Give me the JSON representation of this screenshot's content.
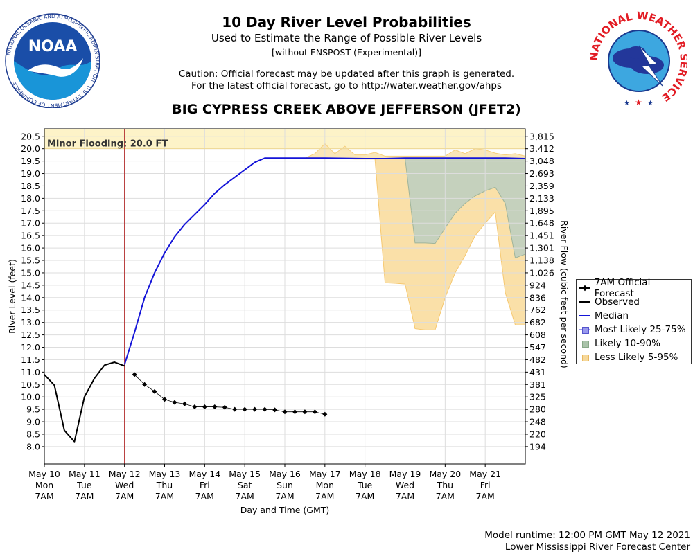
{
  "header": {
    "title": "10 Day River Level Probabilities",
    "subtitle": "Used to Estimate the Range of Possible River Levels",
    "subtitle2": "[without ENSPOST (Experimental)]",
    "caution1": "Caution: Official forecast may be updated after this graph is generated.",
    "caution2": "For the latest official forecast, go to http://water.weather.gov/ahps",
    "station": "BIG CYPRESS CREEK ABOVE JEFFERSON (JFET2)"
  },
  "logos": {
    "noaa_text": "NOAA",
    "noaa_ring": "NATIONAL OCEANIC AND ATMOSPHERIC ADMINISTRATION · U.S. DEPARTMENT OF COMMERCE",
    "nws_ring": "NATIONAL WEATHER SERVICE"
  },
  "footer": {
    "runtime": "Model runtime: 12:00 PM GMT May 12 2021",
    "center": "Lower Mississippi River Forecast Center"
  },
  "legend": {
    "items": [
      {
        "label": "7AM Official Forecast",
        "symbol": "diamond-line",
        "color": "#000000"
      },
      {
        "label": "Observed",
        "symbol": "line",
        "color": "#000000"
      },
      {
        "label": "Median",
        "symbol": "line",
        "color": "#1414d8"
      },
      {
        "label": "Most Likely 25-75%",
        "symbol": "box",
        "color": "#9999ee"
      },
      {
        "label": "Likely 10-90%",
        "symbol": "box",
        "color": "#aac3aa"
      },
      {
        "label": "Less Likely 5-95%",
        "symbol": "box",
        "color": "#f6d89a"
      }
    ]
  },
  "chart_data": {
    "type": "line",
    "xlabel": "Day and Time (GMT)",
    "ylabel": "River Level (feet)",
    "y2label": "River Flow (cubic feet per second)",
    "ylim": [
      7.3,
      20.8
    ],
    "xlim": [
      0,
      12
    ],
    "x_unit": "days since May 10 7AM",
    "y_ticks": [
      8.0,
      8.5,
      9.0,
      9.5,
      10.0,
      10.5,
      11.0,
      11.5,
      12.0,
      12.5,
      13.0,
      13.5,
      14.0,
      14.5,
      15.0,
      15.5,
      16.0,
      16.5,
      17.0,
      17.5,
      18.0,
      18.5,
      19.0,
      19.5,
      20.0,
      20.5
    ],
    "y_tick_labels": [
      "8.0",
      "8.5",
      "9.0",
      "9.5",
      "10.0",
      "10.5",
      "11.0",
      "11.5",
      "12.0",
      "12.5",
      "13.0",
      "13.5",
      "14.0",
      "14.5",
      "15.0",
      "15.5",
      "16.0",
      "16.5",
      "17.0",
      "17.5",
      "18.0",
      "18.5",
      "19.0",
      "19.5",
      "20.0",
      "20.5"
    ],
    "flow_tick_labels": [
      "194",
      "220",
      "248",
      "280",
      "325",
      "381",
      "431",
      "482",
      "547",
      "608",
      "682",
      "762",
      "836",
      "924",
      "1,026",
      "1,138",
      "1,301",
      "1,451",
      "1,648",
      "1,895",
      "2,133",
      "2,359",
      "2,693",
      "3,048",
      "3,412",
      "3,815"
    ],
    "x_ticks": [
      {
        "x": 0,
        "date": "May 10",
        "day": "Mon",
        "time": "7AM"
      },
      {
        "x": 1,
        "date": "May 11",
        "day": "Tue",
        "time": "7AM"
      },
      {
        "x": 2,
        "date": "May 12",
        "day": "Wed",
        "time": "7AM"
      },
      {
        "x": 3,
        "date": "May 13",
        "day": "Thu",
        "time": "7AM"
      },
      {
        "x": 4,
        "date": "May 14",
        "day": "Fri",
        "time": "7AM"
      },
      {
        "x": 5,
        "date": "May 15",
        "day": "Sat",
        "time": "7AM"
      },
      {
        "x": 6,
        "date": "May 16",
        "day": "Sun",
        "time": "7AM"
      },
      {
        "x": 7,
        "date": "May 17",
        "day": "Mon",
        "time": "7AM"
      },
      {
        "x": 8,
        "date": "May 18",
        "day": "Tue",
        "time": "7AM"
      },
      {
        "x": 9,
        "date": "May 19",
        "day": "Wed",
        "time": "7AM"
      },
      {
        "x": 10,
        "date": "May 20",
        "day": "Thu",
        "time": "7AM"
      },
      {
        "x": 11,
        "date": "May 21",
        "day": "Fri",
        "time": "7AM"
      }
    ],
    "flood": {
      "label": "Minor Flooding: 20.0 FT",
      "value": 20.0
    },
    "now_x": 2.0,
    "observed": {
      "name": "Observed",
      "x": [
        0,
        0.25,
        0.5,
        0.75,
        1.0,
        1.25,
        1.5,
        1.75,
        2.0
      ],
      "y": [
        10.9,
        10.47,
        8.65,
        8.2,
        10.0,
        10.75,
        11.28,
        11.4,
        11.25
      ]
    },
    "forecast": {
      "name": "7AM Official Forecast",
      "x": [
        2.25,
        2.5,
        2.75,
        3.0,
        3.25,
        3.5,
        3.75,
        4.0,
        4.25,
        4.5,
        4.75,
        5.0,
        5.25,
        5.5,
        5.75,
        6.0,
        6.25,
        6.5,
        6.75,
        7.0
      ],
      "y": [
        10.9,
        10.5,
        10.22,
        9.9,
        9.78,
        9.72,
        9.6,
        9.6,
        9.6,
        9.58,
        9.5,
        9.5,
        9.5,
        9.5,
        9.48,
        9.4,
        9.4,
        9.4,
        9.4,
        9.3
      ]
    },
    "median": {
      "name": "Median",
      "x": [
        2.0,
        2.25,
        2.5,
        2.75,
        3.0,
        3.25,
        3.5,
        3.75,
        4.0,
        4.25,
        4.5,
        4.75,
        5.0,
        5.25,
        5.5,
        6.0,
        7.0,
        8.0,
        8.5,
        9.0,
        10.0,
        11.0,
        11.5,
        12.0
      ],
      "y": [
        11.3,
        12.6,
        14.0,
        15.0,
        15.8,
        16.45,
        16.95,
        17.35,
        17.75,
        18.2,
        18.55,
        18.85,
        19.15,
        19.45,
        19.62,
        19.62,
        19.62,
        19.6,
        19.6,
        19.62,
        19.62,
        19.62,
        19.62,
        19.6
      ]
    },
    "band_5_95": {
      "name": "Less Likely 5-95%",
      "x": [
        6.0,
        6.25,
        6.5,
        6.75,
        7.0,
        7.25,
        7.5,
        7.75,
        8.0,
        8.25,
        8.5,
        8.75,
        9.0,
        9.25,
        9.5,
        9.75,
        10.0,
        10.25,
        10.5,
        10.75,
        11.0,
        11.25,
        11.5,
        11.75,
        12.0
      ],
      "upper": [
        19.62,
        19.62,
        19.62,
        19.8,
        20.2,
        19.8,
        20.1,
        19.75,
        19.75,
        19.85,
        19.7,
        19.7,
        19.7,
        19.7,
        19.7,
        19.7,
        19.7,
        19.95,
        19.8,
        20.0,
        19.95,
        19.82,
        19.75,
        19.8,
        19.7
      ],
      "lower": [
        19.62,
        19.62,
        19.62,
        19.6,
        19.6,
        19.6,
        19.6,
        19.58,
        19.58,
        19.58,
        19.6,
        19.6,
        19.6,
        19.6,
        19.6,
        19.6,
        19.6,
        19.6,
        19.6,
        19.6,
        19.6,
        19.6,
        19.6,
        19.6,
        19.6
      ]
    },
    "band_5_95_lower": {
      "x": [
        8.25,
        8.5,
        8.75,
        9.0,
        9.25,
        9.5,
        9.75,
        10.0,
        10.25,
        10.5,
        10.75,
        11.0,
        11.25,
        11.5,
        11.75,
        12.0
      ],
      "upper": [
        19.58,
        19.6,
        19.6,
        19.62,
        19.62,
        19.62,
        19.62,
        19.62,
        19.62,
        19.62,
        19.62,
        19.62,
        19.62,
        19.62,
        19.6,
        19.6
      ],
      "lower": [
        19.58,
        14.6,
        14.58,
        14.55,
        12.75,
        12.7,
        12.7,
        14.0,
        15.0,
        15.7,
        16.5,
        17.0,
        17.45,
        14.2,
        12.9,
        12.9
      ]
    },
    "band_10_90": {
      "name": "Likely 10-90%",
      "x": [
        9.0,
        9.25,
        9.5,
        9.75,
        10.0,
        10.25,
        10.5,
        10.75,
        11.0,
        11.25,
        11.5,
        11.75,
        12.0
      ],
      "upper": [
        19.62,
        19.62,
        19.62,
        19.62,
        19.62,
        19.62,
        19.62,
        19.62,
        19.62,
        19.62,
        19.62,
        19.6,
        19.6
      ],
      "lower": [
        19.62,
        16.2,
        16.2,
        16.18,
        16.8,
        17.4,
        17.8,
        18.1,
        18.3,
        18.45,
        17.8,
        15.6,
        15.75
      ]
    },
    "band_25_75": {
      "name": "Most Likely 25-75%",
      "x": [],
      "upper": [],
      "lower": []
    }
  }
}
